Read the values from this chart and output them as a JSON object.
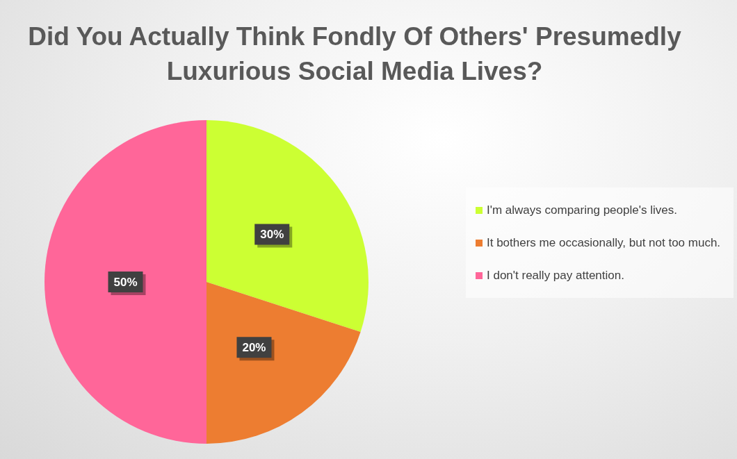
{
  "chart_data": {
    "type": "pie",
    "title": "Did You Actually Think Fondly Of Others' Presumedly Luxurious Social Media Lives?",
    "categories": [
      "I'm always comparing people's lives.",
      "It bothers me occasionally, but not too much.",
      "I don't really pay attention."
    ],
    "values": [
      30,
      20,
      50
    ],
    "colors": [
      "#ccff33",
      "#ed7d31",
      "#ff6699"
    ],
    "value_labels": [
      "30%",
      "20%",
      "50%"
    ],
    "legend": "right"
  }
}
